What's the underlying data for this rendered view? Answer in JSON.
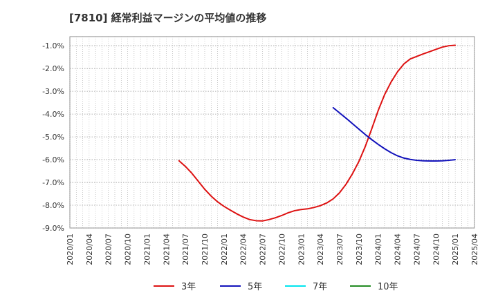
{
  "chart_data": {
    "type": "line",
    "title": "[7810]  経常利益マージンの平均値の推移",
    "xlabel": "",
    "ylabel": "",
    "x_ticks": [
      "2020/01",
      "2020/04",
      "2020/07",
      "2020/10",
      "2021/01",
      "2021/04",
      "2021/07",
      "2021/10",
      "2022/01",
      "2022/04",
      "2022/07",
      "2022/10",
      "2023/01",
      "2023/04",
      "2023/07",
      "2023/10",
      "2024/01",
      "2024/04",
      "2024/07",
      "2024/10",
      "2025/01",
      "2025/04"
    ],
    "y_ticks": [
      "-1.0%",
      "-2.0%",
      "-3.0%",
      "-4.0%",
      "-5.0%",
      "-6.0%",
      "-7.0%",
      "-8.0%",
      "-9.0%"
    ],
    "ylim": [
      -9.0,
      -0.6
    ],
    "grid": true,
    "legend_position": "bottom",
    "series": [
      {
        "name": "3年",
        "color": "#dd1111",
        "points": [
          [
            "2021/06",
            -6.05
          ],
          [
            "2021/07",
            -6.3
          ],
          [
            "2021/08",
            -6.6
          ],
          [
            "2021/09",
            -6.95
          ],
          [
            "2021/10",
            -7.3
          ],
          [
            "2021/11",
            -7.6
          ],
          [
            "2021/12",
            -7.85
          ],
          [
            "2022/01",
            -8.05
          ],
          [
            "2022/02",
            -8.22
          ],
          [
            "2022/03",
            -8.38
          ],
          [
            "2022/04",
            -8.52
          ],
          [
            "2022/05",
            -8.63
          ],
          [
            "2022/06",
            -8.68
          ],
          [
            "2022/07",
            -8.69
          ],
          [
            "2022/08",
            -8.63
          ],
          [
            "2022/09",
            -8.55
          ],
          [
            "2022/10",
            -8.45
          ],
          [
            "2022/11",
            -8.33
          ],
          [
            "2022/12",
            -8.24
          ],
          [
            "2023/01",
            -8.19
          ],
          [
            "2023/02",
            -8.16
          ],
          [
            "2023/03",
            -8.1
          ],
          [
            "2023/04",
            -8.02
          ],
          [
            "2023/05",
            -7.9
          ],
          [
            "2023/06",
            -7.72
          ],
          [
            "2023/07",
            -7.45
          ],
          [
            "2023/08",
            -7.08
          ],
          [
            "2023/09",
            -6.62
          ],
          [
            "2023/10",
            -6.08
          ],
          [
            "2023/11",
            -5.42
          ],
          [
            "2023/12",
            -4.65
          ],
          [
            "2024/01",
            -3.85
          ],
          [
            "2024/02",
            -3.15
          ],
          [
            "2024/03",
            -2.6
          ],
          [
            "2024/04",
            -2.15
          ],
          [
            "2024/05",
            -1.8
          ],
          [
            "2024/06",
            -1.58
          ],
          [
            "2024/07",
            -1.47
          ],
          [
            "2024/08",
            -1.36
          ],
          [
            "2024/09",
            -1.26
          ],
          [
            "2024/10",
            -1.16
          ],
          [
            "2024/11",
            -1.06
          ],
          [
            "2024/12",
            -1.0
          ],
          [
            "2025/01",
            -0.98
          ]
        ]
      },
      {
        "name": "5年",
        "color": "#1111bb",
        "points": [
          [
            "2023/06",
            -3.72
          ],
          [
            "2023/07",
            -3.95
          ],
          [
            "2023/08",
            -4.18
          ],
          [
            "2023/09",
            -4.42
          ],
          [
            "2023/10",
            -4.66
          ],
          [
            "2023/11",
            -4.9
          ],
          [
            "2023/12",
            -5.12
          ],
          [
            "2024/01",
            -5.33
          ],
          [
            "2024/02",
            -5.52
          ],
          [
            "2024/03",
            -5.69
          ],
          [
            "2024/04",
            -5.83
          ],
          [
            "2024/05",
            -5.93
          ],
          [
            "2024/06",
            -5.99
          ],
          [
            "2024/07",
            -6.03
          ],
          [
            "2024/08",
            -6.05
          ],
          [
            "2024/09",
            -6.06
          ],
          [
            "2024/10",
            -6.06
          ],
          [
            "2024/11",
            -6.05
          ],
          [
            "2024/12",
            -6.03
          ],
          [
            "2025/01",
            -6.0
          ]
        ]
      },
      {
        "name": "7年",
        "color": "#00e5ee",
        "points": []
      },
      {
        "name": "10年",
        "color": "#228B22",
        "points": []
      }
    ]
  }
}
